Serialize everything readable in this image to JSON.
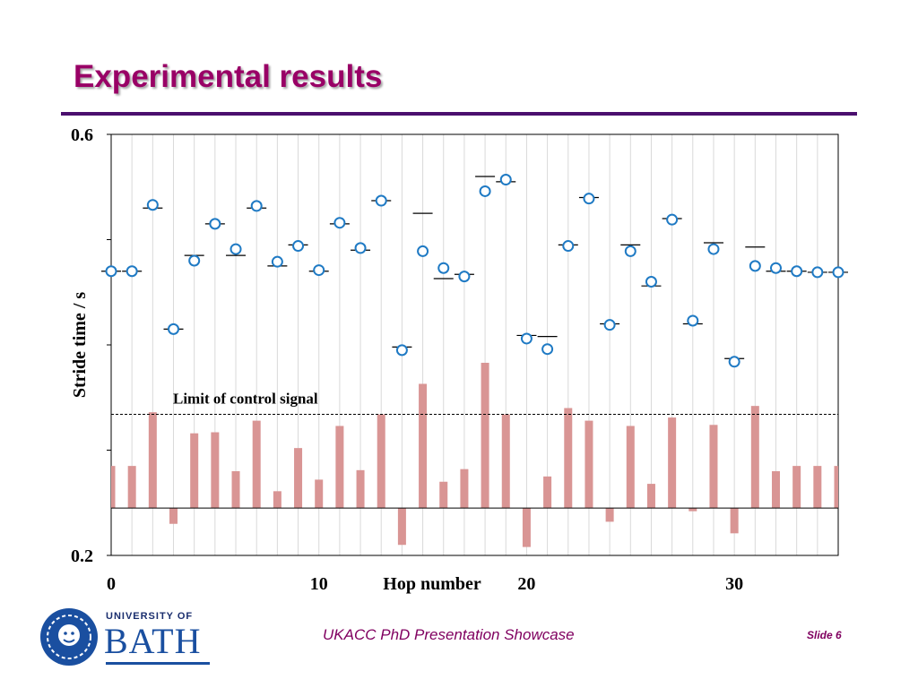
{
  "slide": {
    "title": "Experimental results",
    "footer": "UKACC PhD Presentation Showcase",
    "slide_number": "Slide 6",
    "colors": {
      "title": "#990066",
      "rule": "#4b0f6e",
      "circle": "#1f7ac4",
      "bar": "#d99594"
    }
  },
  "logo": {
    "top_text": "UNIVERSITY OF",
    "name": "BATH",
    "icon": "bath-crest-icon"
  },
  "chart_data": {
    "type": "scatter",
    "ylabel": "Stride time / s",
    "xlabel": "Hop number",
    "annotation": "Limit of control signal",
    "x_ticks": [
      0,
      10,
      20,
      30
    ],
    "y_tick_labels": [
      "0.6",
      "0.2"
    ],
    "xlim": [
      0,
      35
    ],
    "ylim": [
      0.2,
      0.6
    ],
    "grid": "vertical",
    "x": [
      0,
      1,
      2,
      3,
      4,
      5,
      6,
      7,
      8,
      9,
      10,
      11,
      12,
      13,
      14,
      15,
      16,
      17,
      18,
      19,
      20,
      21,
      22,
      23,
      24,
      25,
      26,
      27,
      28,
      29,
      30,
      31,
      32,
      33,
      34,
      35
    ],
    "series": [
      {
        "marker": "circle",
        "values": [
          0.47,
          0.47,
          0.533,
          0.415,
          0.48,
          0.515,
          0.491,
          0.532,
          0.479,
          0.494,
          0.471,
          0.516,
          0.492,
          0.537,
          0.395,
          0.489,
          0.473,
          0.465,
          0.546,
          0.557,
          0.406,
          0.396,
          0.494,
          0.539,
          0.419,
          0.489,
          0.46,
          0.519,
          0.423,
          0.491,
          0.384,
          0.475,
          0.473,
          0.47,
          0.469,
          0.469
        ]
      },
      {
        "marker": "dash",
        "values": [
          0.47,
          0.47,
          0.53,
          0.415,
          0.485,
          0.515,
          0.485,
          0.53,
          0.475,
          0.495,
          0.47,
          0.515,
          0.49,
          0.537,
          0.398,
          0.525,
          0.463,
          0.467,
          0.56,
          0.555,
          0.409,
          0.408,
          0.495,
          0.54,
          0.42,
          0.495,
          0.456,
          0.52,
          0.42,
          0.497,
          0.387,
          0.493,
          0.47,
          0.47,
          0.469,
          0.469
        ]
      },
      {
        "marker": "bar",
        "baseline": 0.245,
        "values": [
          0.285,
          0.285,
          0.336,
          0.23,
          0.316,
          0.317,
          0.28,
          0.328,
          0.261,
          0.302,
          0.272,
          0.323,
          0.281,
          0.334,
          0.21,
          0.363,
          0.27,
          0.282,
          0.383,
          0.334,
          0.208,
          0.275,
          0.34,
          0.328,
          0.232,
          0.323,
          0.268,
          0.331,
          0.242,
          0.324,
          0.221,
          0.342,
          0.28,
          0.285,
          0.285,
          0.285
        ]
      }
    ],
    "reference_line": 0.334,
    "baseline_line": 0.245
  }
}
